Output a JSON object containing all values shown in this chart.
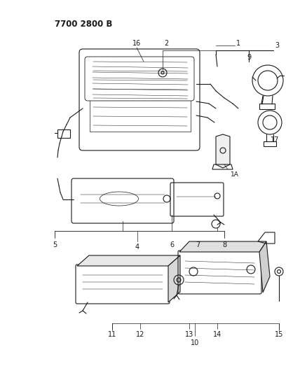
{
  "title": "7700 2800 B",
  "bg_color": "#ffffff",
  "line_color": "#1a1a1a",
  "title_fontsize": 8.5,
  "label_fontsize": 7,
  "fig_width": 4.28,
  "fig_height": 5.33,
  "dpi": 100
}
